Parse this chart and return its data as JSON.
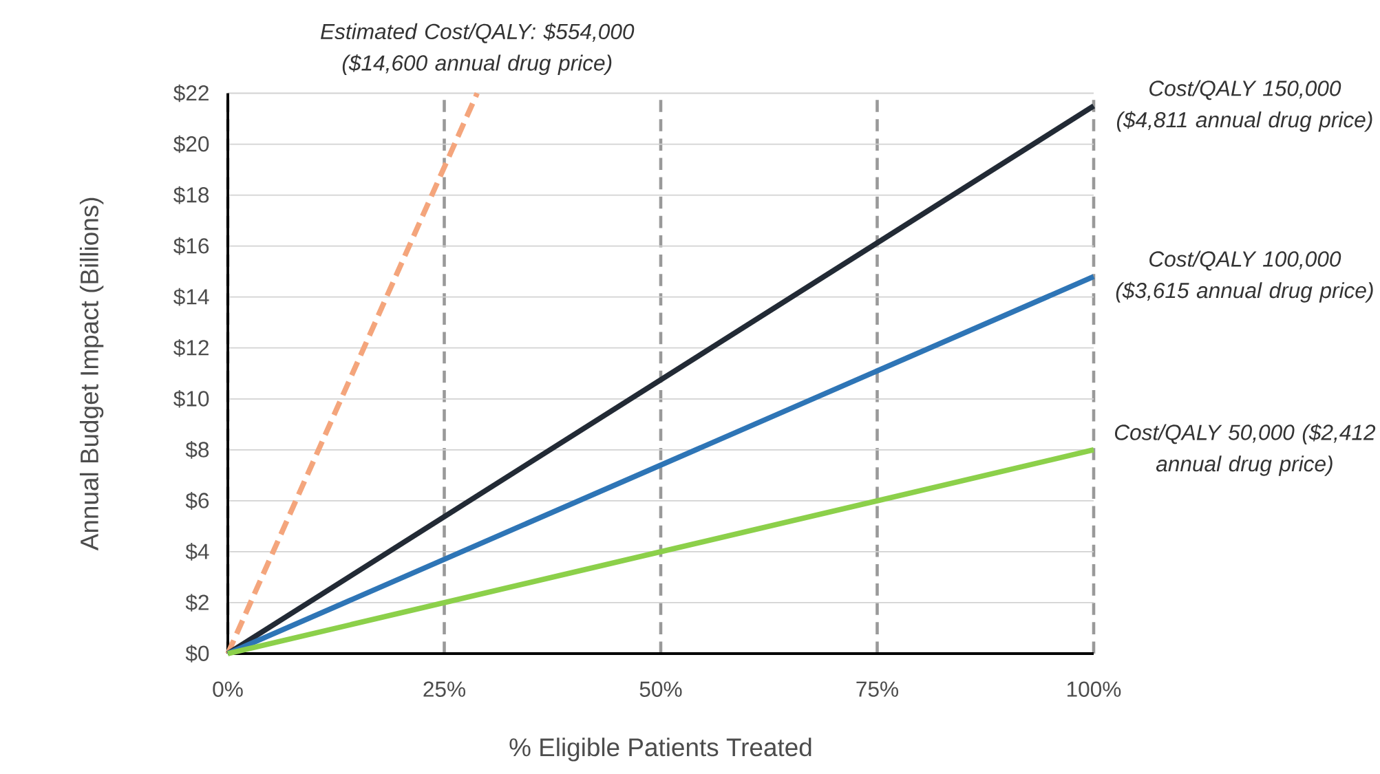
{
  "chart_data": {
    "type": "line",
    "xlabel": "% Eligible Patients Treated",
    "ylabel": "Annual Budget Impact   (Billions)",
    "xlim": [
      0,
      100
    ],
    "ylim": [
      0,
      22
    ],
    "xticks": [
      {
        "value": 0,
        "label": "0%"
      },
      {
        "value": 25,
        "label": "25%"
      },
      {
        "value": 50,
        "label": "50%"
      },
      {
        "value": 75,
        "label": "75%"
      },
      {
        "value": 100,
        "label": "100%"
      }
    ],
    "yticks": [
      {
        "value": 0,
        "label": "$0"
      },
      {
        "value": 2,
        "label": "$2"
      },
      {
        "value": 4,
        "label": "$4"
      },
      {
        "value": 6,
        "label": "$6"
      },
      {
        "value": 8,
        "label": "$8"
      },
      {
        "value": 10,
        "label": "$10"
      },
      {
        "value": 12,
        "label": "$12"
      },
      {
        "value": 14,
        "label": "$14"
      },
      {
        "value": 16,
        "label": "$16"
      },
      {
        "value": 18,
        "label": "$18"
      },
      {
        "value": 20,
        "label": "$20"
      },
      {
        "value": 22,
        "label": "$22"
      }
    ],
    "grid": true,
    "legend": false,
    "marker": "none",
    "series": [
      {
        "name": "Estimated Cost/QALY: $554,000 ($14,600 annual drug price)",
        "color": "#f4a57c",
        "line_style": "dashed",
        "x": [
          0,
          28.8
        ],
        "values": [
          0,
          22
        ]
      },
      {
        "name": "Cost/QALY 150,000 ($4,811 annual drug price)",
        "color": "#222a35",
        "line_style": "solid",
        "x": [
          0,
          100
        ],
        "values": [
          0,
          21.5
        ]
      },
      {
        "name": "Cost/QALY 100,000 ($3,615 annual drug price)",
        "color": "#2e75b6",
        "line_style": "solid",
        "x": [
          0,
          100
        ],
        "values": [
          0,
          14.8
        ]
      },
      {
        "name": "Cost/QALY 50,000   ($2,412 annual drug price)",
        "color": "#8cd04a",
        "line_style": "solid",
        "x": [
          0,
          100
        ],
        "values": [
          0,
          8
        ]
      }
    ]
  }
}
